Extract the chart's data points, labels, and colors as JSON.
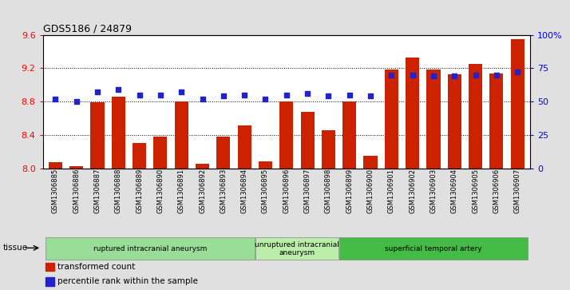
{
  "title": "GDS5186 / 24879",
  "samples": [
    "GSM1306885",
    "GSM1306886",
    "GSM1306887",
    "GSM1306888",
    "GSM1306889",
    "GSM1306890",
    "GSM1306891",
    "GSM1306892",
    "GSM1306893",
    "GSM1306894",
    "GSM1306895",
    "GSM1306896",
    "GSM1306897",
    "GSM1306898",
    "GSM1306899",
    "GSM1306900",
    "GSM1306901",
    "GSM1306902",
    "GSM1306903",
    "GSM1306904",
    "GSM1306905",
    "GSM1306906",
    "GSM1306907"
  ],
  "bar_values": [
    8.07,
    8.02,
    8.79,
    8.86,
    8.3,
    8.38,
    8.8,
    8.05,
    8.38,
    8.51,
    8.08,
    8.8,
    8.68,
    8.46,
    8.8,
    8.15,
    9.18,
    9.33,
    9.18,
    9.13,
    9.25,
    9.14,
    9.55
  ],
  "percentile_values": [
    52,
    50,
    57,
    59,
    55,
    55,
    57,
    52,
    54,
    55,
    52,
    55,
    56,
    54,
    55,
    54,
    70,
    70,
    69,
    69,
    70,
    70,
    72
  ],
  "ylim_left": [
    8.0,
    9.6
  ],
  "ylim_right": [
    0,
    100
  ],
  "yticks_left": [
    8.0,
    8.4,
    8.8,
    9.2,
    9.6
  ],
  "yticks_right": [
    0,
    25,
    50,
    75,
    100
  ],
  "bar_color": "#cc2200",
  "dot_color": "#2222cc",
  "background_color": "#e0e0e0",
  "plot_bg_color": "#ffffff",
  "groups": [
    {
      "label": "ruptured intracranial aneurysm",
      "start": 0,
      "end": 10,
      "color": "#99dd99"
    },
    {
      "label": "unruptured intracranial\naneurysm",
      "start": 10,
      "end": 14,
      "color": "#bbeeaa"
    },
    {
      "label": "superficial temporal artery",
      "start": 14,
      "end": 23,
      "color": "#44bb44"
    }
  ],
  "tissue_label": "tissue",
  "legend": [
    {
      "label": "transformed count",
      "color": "#cc2200"
    },
    {
      "label": "percentile rank within the sample",
      "color": "#2222cc"
    }
  ]
}
